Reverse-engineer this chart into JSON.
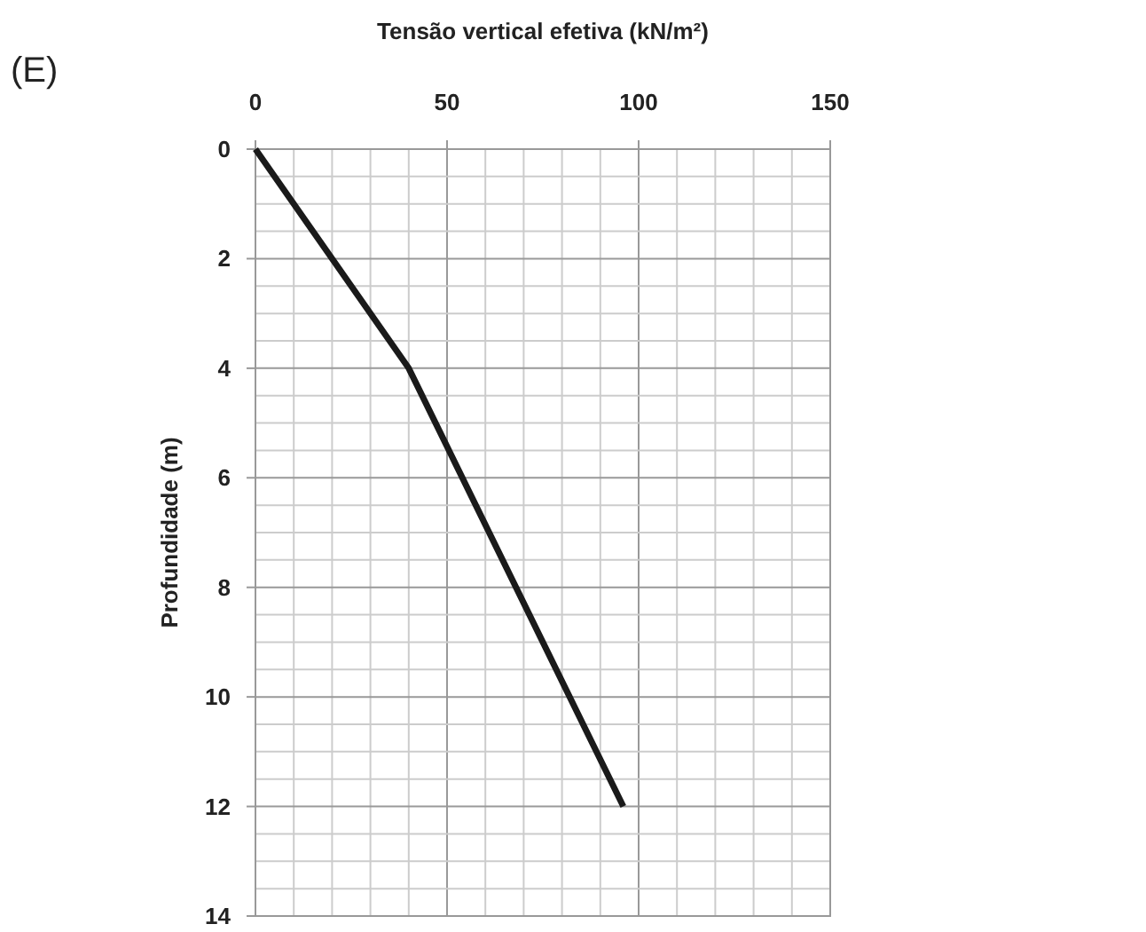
{
  "chart_data": {
    "type": "line",
    "xlabel": "Tensão vertical efetiva (kN/m²)",
    "ylabel": "Profundidade (m)",
    "annotations": [
      "(E)"
    ],
    "x": [
      0,
      40,
      96
    ],
    "series": [
      {
        "color": "#1a1a1a",
        "values": [
          0,
          4,
          12
        ]
      }
    ],
    "xlim": [
      0,
      150
    ],
    "ylim": [
      14,
      0
    ],
    "xticks": [
      0,
      {
        "value": 10,
        "label": null
      },
      {
        "value": 20,
        "label": null
      },
      {
        "value": 30,
        "label": null
      },
      {
        "value": 40,
        "label": null
      },
      50,
      {
        "value": 60,
        "label": null
      },
      {
        "value": 70,
        "label": null
      },
      {
        "value": 80,
        "label": null
      },
      {
        "value": 90,
        "label": null
      },
      100,
      {
        "value": 110,
        "label": null
      },
      {
        "value": 120,
        "label": null
      },
      {
        "value": 130,
        "label": null
      },
      {
        "value": 140,
        "label": null
      },
      150
    ],
    "yticks": [
      0,
      {
        "value": 0.5,
        "label": null
      },
      {
        "value": 1,
        "label": null
      },
      {
        "value": 1.5,
        "label": null
      },
      2,
      {
        "value": 2.5,
        "label": null
      },
      {
        "value": 3,
        "label": null
      },
      {
        "value": 3.5,
        "label": null
      },
      4,
      {
        "value": 4.5,
        "label": null
      },
      {
        "value": 5,
        "label": null
      },
      {
        "value": 5.5,
        "label": null
      },
      6,
      {
        "value": 6.5,
        "label": null
      },
      {
        "value": 7,
        "label": null
      },
      {
        "value": 7.5,
        "label": null
      },
      8,
      {
        "value": 8.5,
        "label": null
      },
      {
        "value": 9,
        "label": null
      },
      {
        "value": 9.5,
        "label": null
      },
      10,
      {
        "value": 10.5,
        "label": null
      },
      {
        "value": 11,
        "label": null
      },
      {
        "value": 11.5,
        "label": null
      },
      12,
      {
        "value": 12.5,
        "label": null
      },
      {
        "value": 13,
        "label": null
      },
      {
        "value": 13.5,
        "label": null
      },
      14
    ],
    "grid": true,
    "line_style": "solid",
    "marker": "none"
  }
}
